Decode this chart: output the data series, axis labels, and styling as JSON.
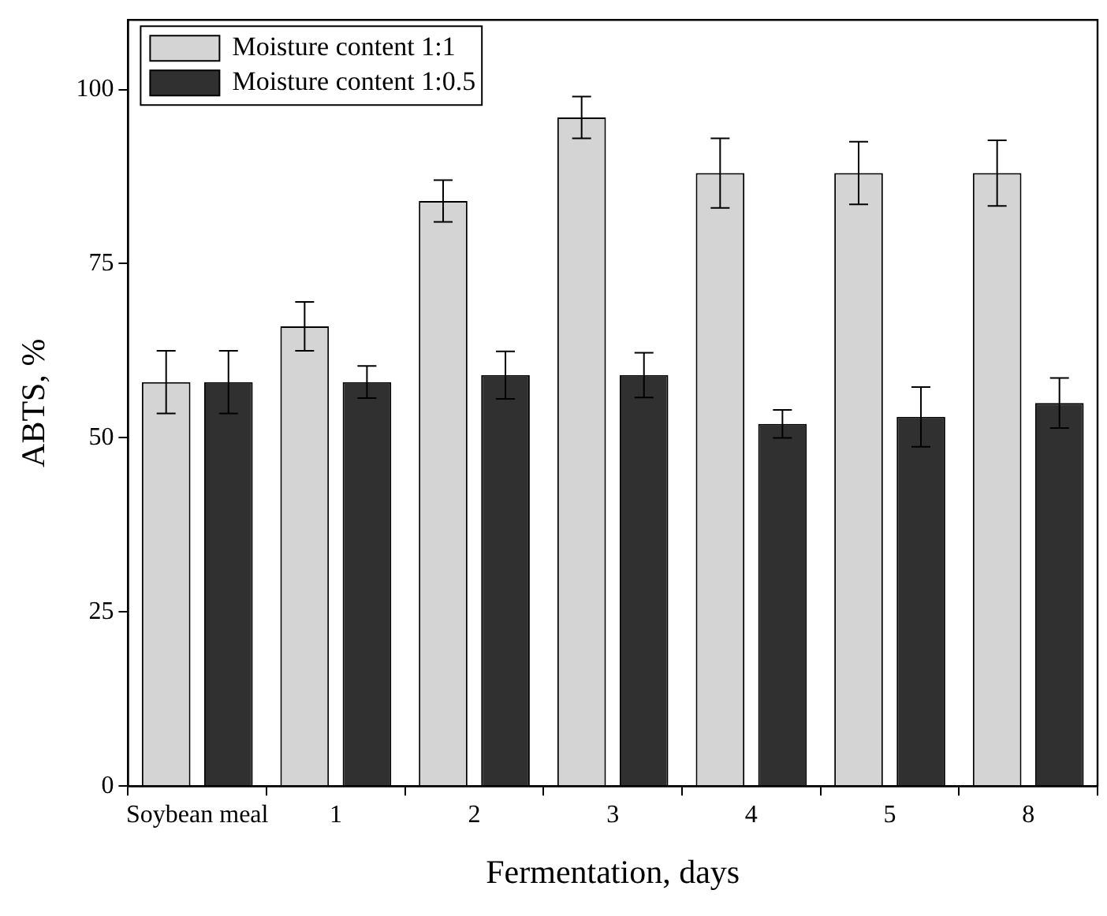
{
  "chart_data": {
    "type": "bar",
    "xlabel": "Fermentation, days",
    "ylabel": "ABTS, %",
    "categories": [
      "Soybean meal",
      "1",
      "2",
      "3",
      "4",
      "5",
      "8"
    ],
    "series": [
      {
        "name": "Moisture content 1:1",
        "color": "#d4d4d4",
        "values": [
          58,
          66,
          84,
          96,
          88,
          88,
          88
        ],
        "errors": [
          4.5,
          3.5,
          3,
          3,
          5,
          4.5,
          4.7
        ]
      },
      {
        "name": "Moisture content 1:0.5",
        "color": "#303030",
        "values": [
          58,
          58,
          59,
          59,
          52,
          53,
          55
        ],
        "errors": [
          4.5,
          2.3,
          3.4,
          3.2,
          2,
          4.3,
          3.6
        ]
      }
    ],
    "ylim": [
      0,
      110
    ],
    "yticks": [
      0,
      25,
      50,
      75,
      100
    ],
    "grid": false,
    "legend": "top left"
  }
}
